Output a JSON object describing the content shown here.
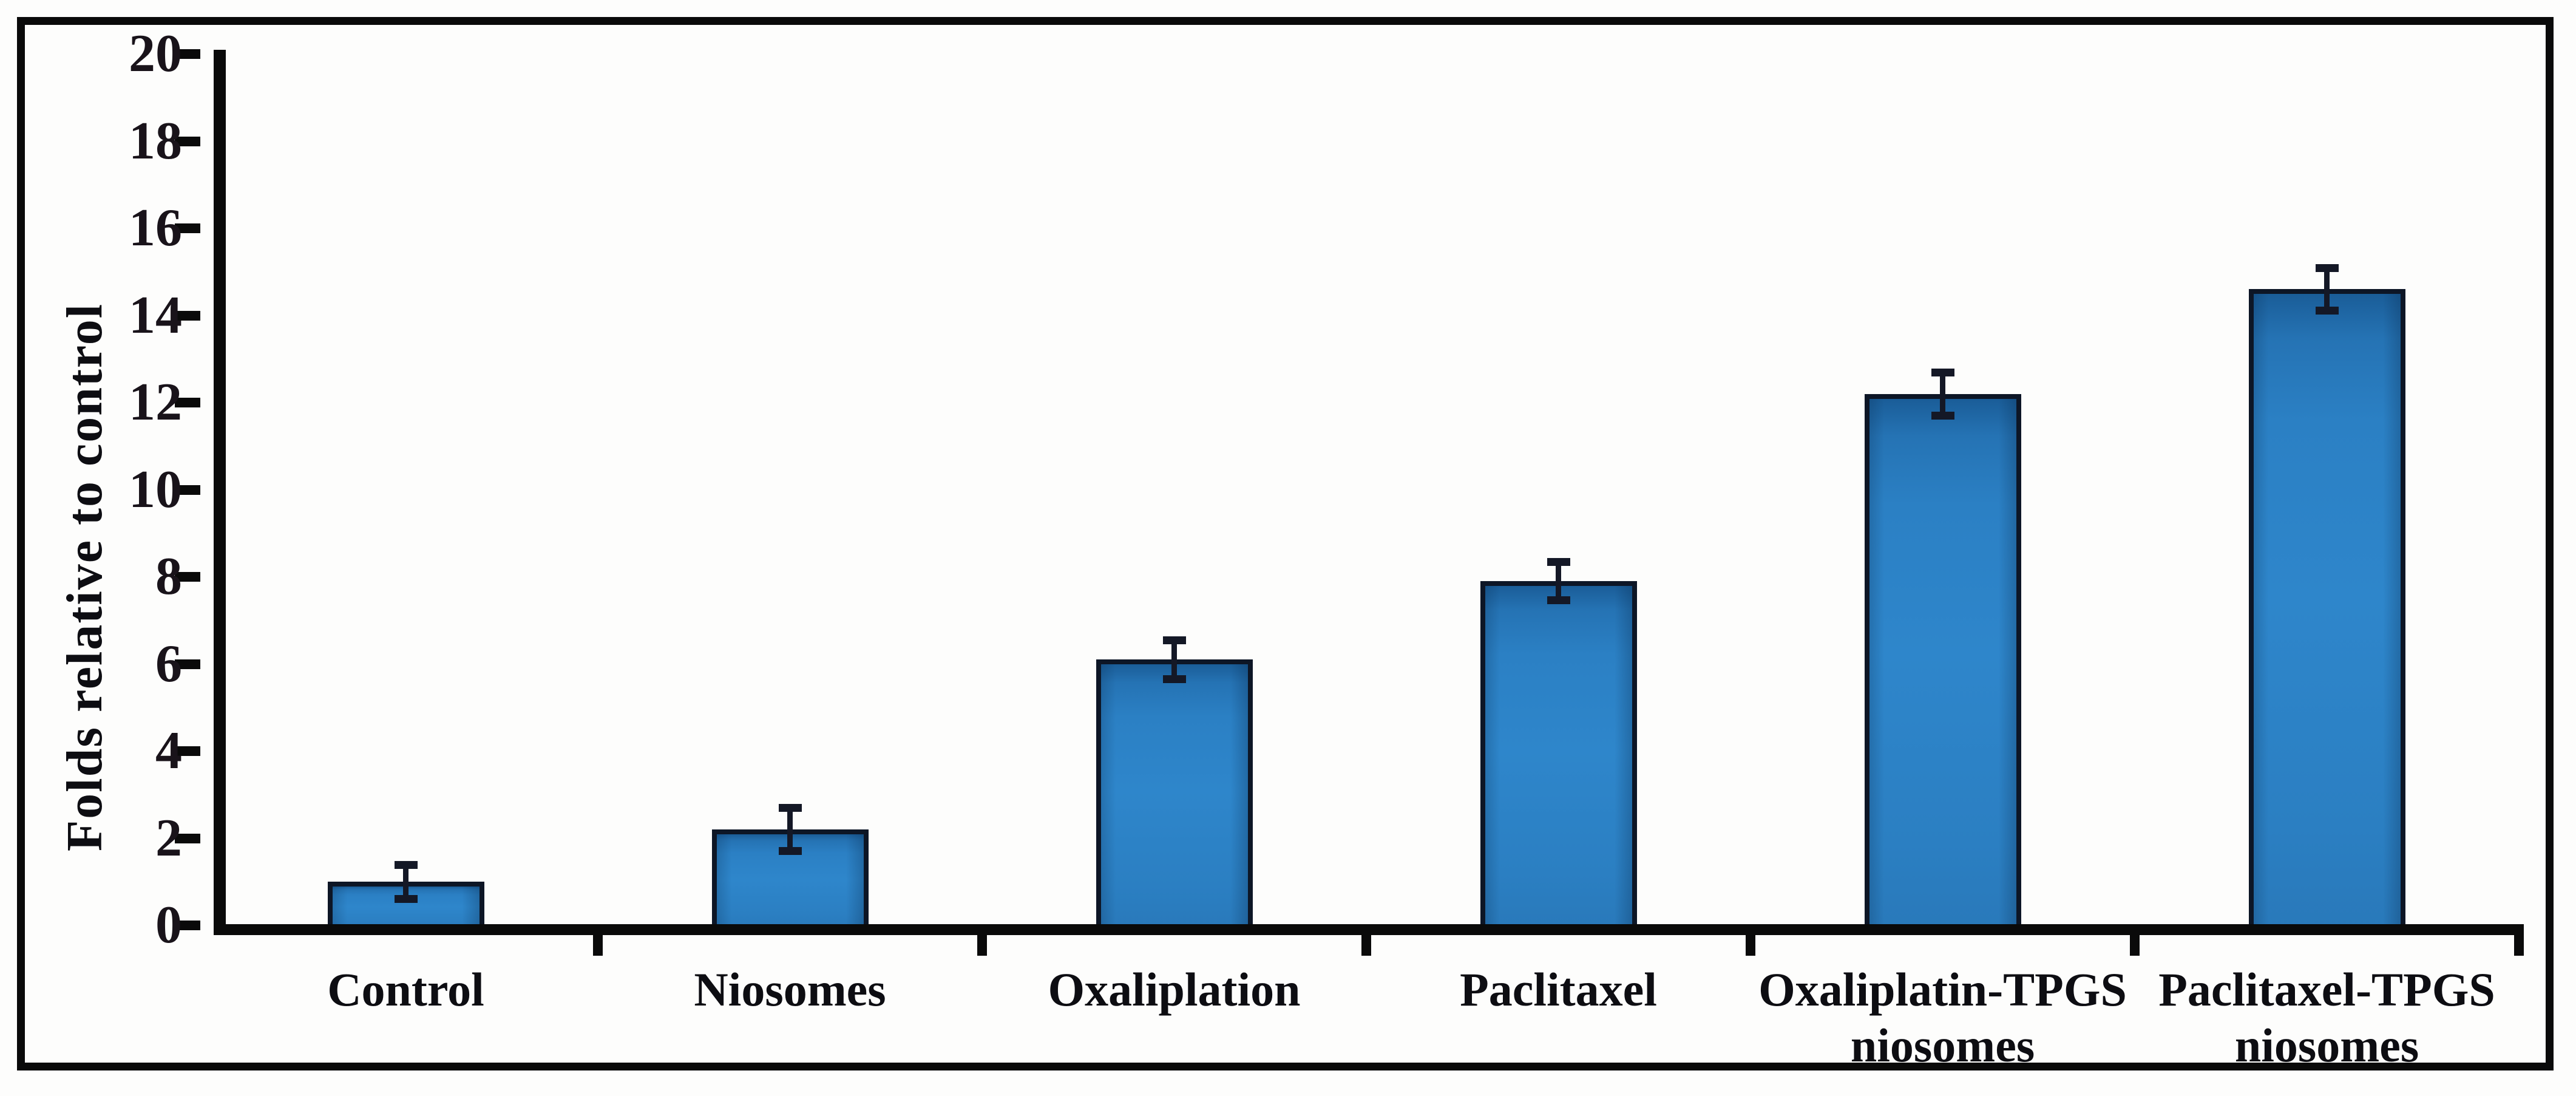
{
  "figure": {
    "background": "#fdfdfc",
    "frame_color": "#0a0a0a"
  },
  "chart_data": {
    "type": "bar",
    "title": "",
    "xlabel": "",
    "ylabel": "Folds relative to control",
    "categories": [
      "Control",
      "Niosomes",
      "Oxaliplation",
      "Paclitaxel",
      "Oxaliplatin-TPGS niosomes",
      "Paclitaxel-TPGS niosomes"
    ],
    "category_lines": [
      [
        "Control"
      ],
      [
        "Niosomes"
      ],
      [
        "Oxaliplation"
      ],
      [
        "Paclitaxel"
      ],
      [
        "Oxaliplatin-TPGS",
        "niosomes"
      ],
      [
        "Paclitaxel-TPGS",
        "niosomes"
      ]
    ],
    "values": [
      1.0,
      2.2,
      6.1,
      7.9,
      12.2,
      14.6
    ],
    "errors": [
      0.4,
      0.5,
      0.45,
      0.45,
      0.5,
      0.5
    ],
    "ylim": [
      0,
      20
    ],
    "yticks": [
      0,
      2,
      4,
      6,
      8,
      10,
      12,
      14,
      16,
      18,
      20
    ],
    "grid": false,
    "legend": null,
    "bar_color": "#2b80c4",
    "bar_border_color": "#0d1626",
    "error_bar_color": "#141826",
    "axis_color": "#0a0a0a",
    "tick_label_color": "#19131a",
    "category_label_color": "#0d0d12"
  }
}
